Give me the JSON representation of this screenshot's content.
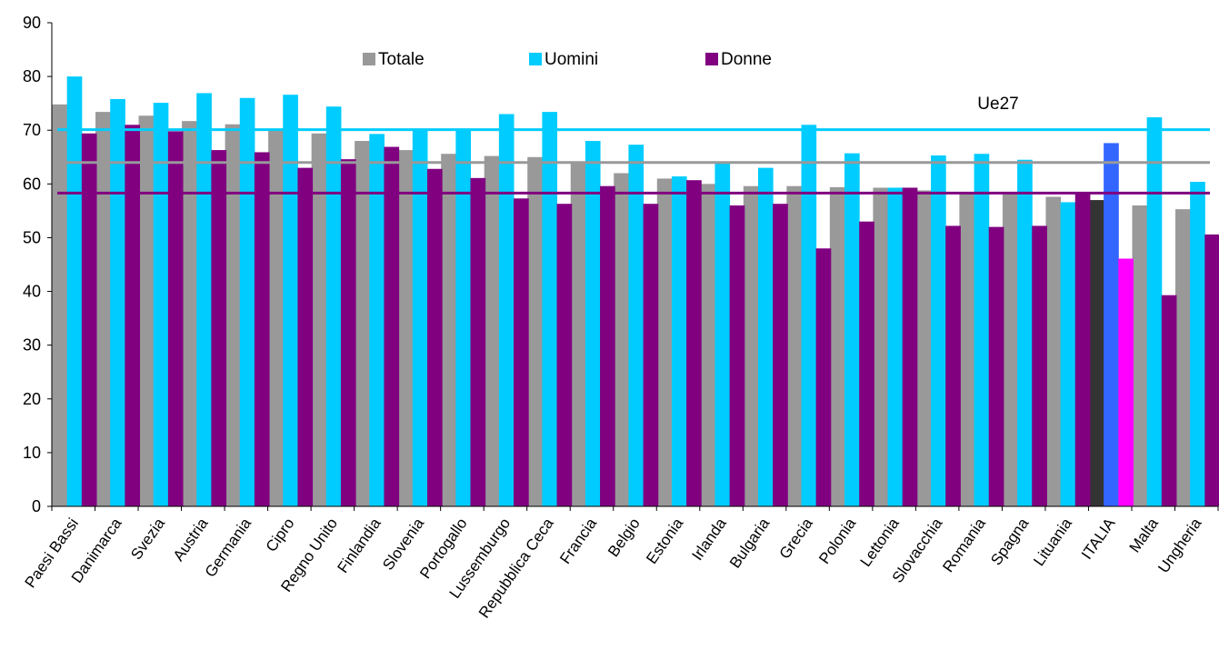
{
  "chart_data": {
    "type": "bar",
    "title": "",
    "xlabel": "",
    "ylabel": "",
    "ylim": [
      0,
      90
    ],
    "yticks": [
      0,
      10,
      20,
      30,
      40,
      50,
      60,
      70,
      80,
      90
    ],
    "grid": false,
    "legend_position": "top",
    "categories": [
      "Paesi Bassi",
      "Danimarca",
      "Svezia",
      "Austria",
      "Germania",
      "Cipro",
      "Regno Unito",
      "Finlandia",
      "Slovenia",
      "Portogallo",
      "Lussemburgo",
      "Repubblica Ceca",
      "Francia",
      "Belgio",
      "Estonia",
      "Irlanda",
      "Bulgaria",
      "Grecia",
      "Polonia",
      "Lettonia",
      "Slovacchia",
      "Romania",
      "Spagna",
      "Lituania",
      "ITALIA",
      "Malta",
      "Ungheria"
    ],
    "series": [
      {
        "name": "Totale",
        "color": "#999999",
        "values": [
          74.8,
          73.4,
          72.7,
          71.7,
          71.1,
          69.9,
          69.4,
          68.0,
          66.3,
          65.6,
          65.2,
          65.0,
          64.0,
          62.0,
          61.0,
          60.0,
          59.6,
          59.6,
          59.4,
          59.3,
          58.8,
          58.5,
          58.4,
          57.6,
          57.0,
          56.0,
          55.3
        ]
      },
      {
        "name": "Uomini",
        "color": "#00CCFF",
        "values": [
          80.0,
          75.8,
          75.1,
          76.9,
          76.0,
          76.6,
          74.4,
          69.3,
          70.0,
          70.0,
          73.0,
          73.4,
          68.0,
          67.3,
          61.4,
          64.0,
          63.0,
          71.0,
          65.7,
          59.3,
          65.3,
          65.6,
          64.5,
          56.6,
          67.6,
          72.4,
          60.4
        ]
      },
      {
        "name": "Donne",
        "color": "#800080",
        "values": [
          69.4,
          71.0,
          69.8,
          66.3,
          65.9,
          63.0,
          64.6,
          66.9,
          62.8,
          61.1,
          57.3,
          56.3,
          59.6,
          56.3,
          60.7,
          56.0,
          56.3,
          48.0,
          53.0,
          59.3,
          52.2,
          52.0,
          52.2,
          58.5,
          46.1,
          39.3,
          50.6
        ]
      }
    ],
    "highlight": {
      "category": "ITALIA",
      "colors": [
        "#333333",
        "#3366FF",
        "#FF00FF"
      ]
    },
    "reference_lines": [
      {
        "series": "Uomini",
        "value": 70.1,
        "color": "#00CCFF"
      },
      {
        "series": "Totale",
        "value": 64.0,
        "color": "#999999"
      },
      {
        "series": "Donne",
        "value": 58.3,
        "color": "#800080"
      }
    ],
    "reference_label": "Ue27"
  }
}
